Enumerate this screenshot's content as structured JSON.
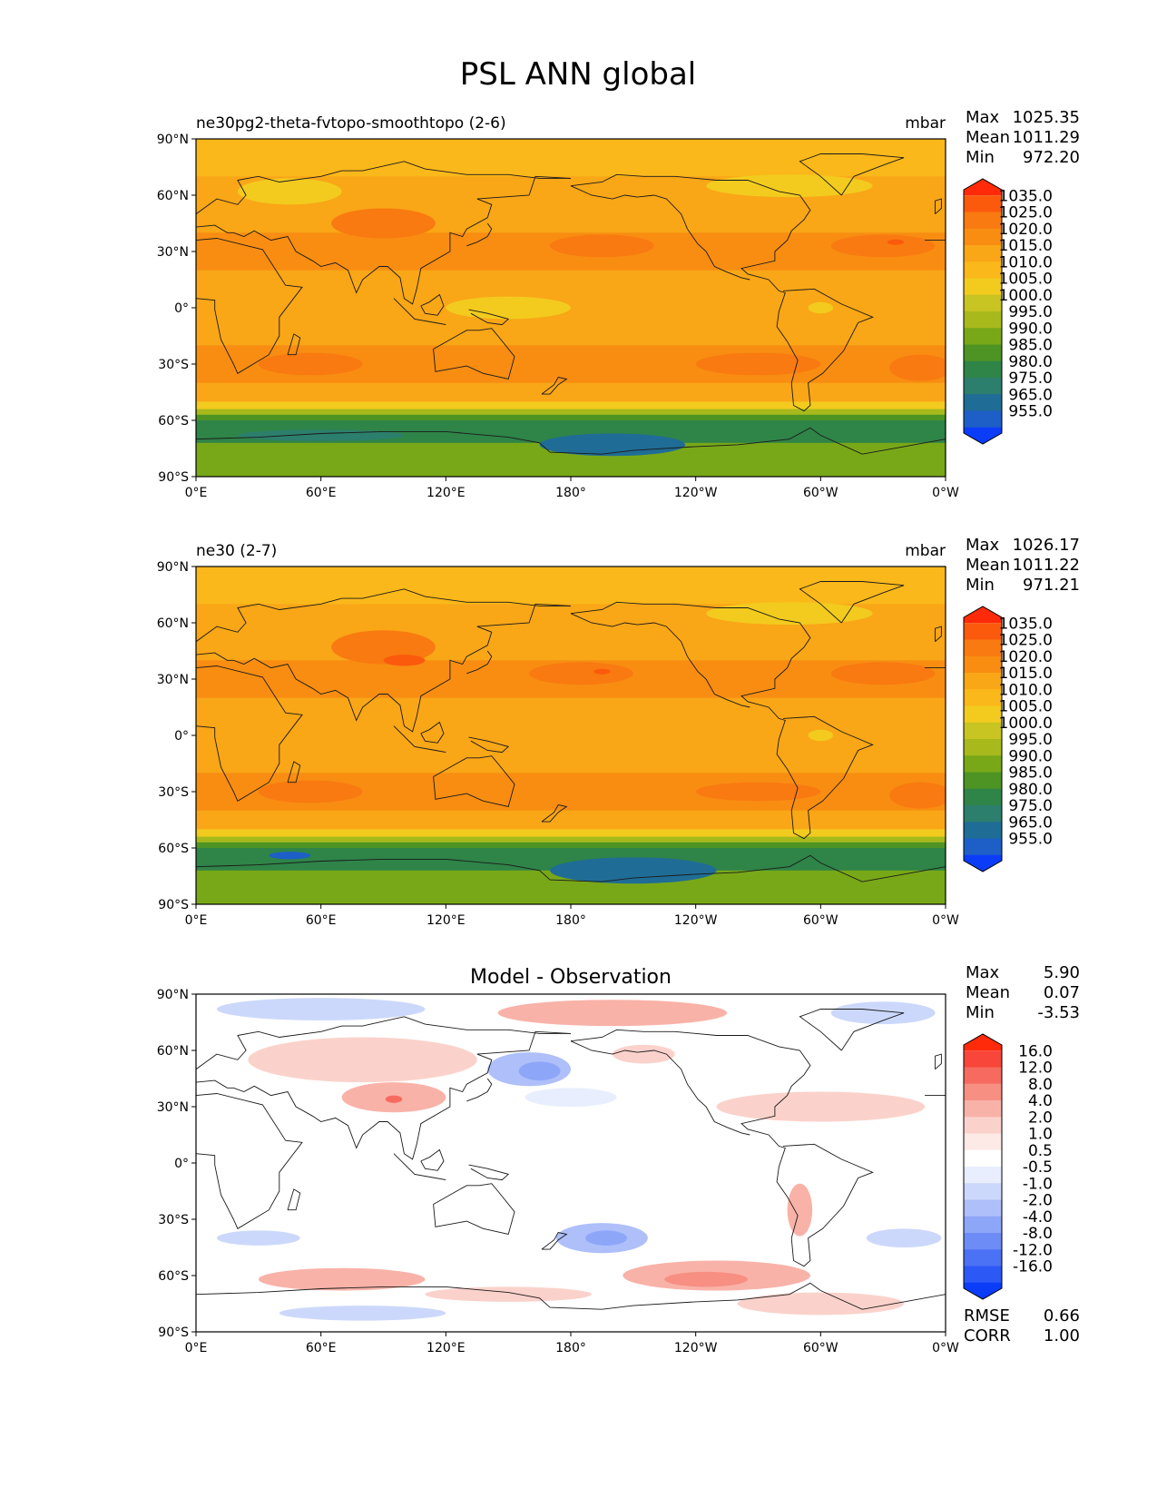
{
  "title": "PSL ANN global",
  "chart_data": [
    {
      "type": "heatmap",
      "title": "",
      "subtitle_left": "ne30pg2-theta-fvtopo-smoothtopo (2-6)",
      "units": "mbar",
      "stats": [
        {
          "label": "Max",
          "value": "1025.35"
        },
        {
          "label": "Mean",
          "value": "1011.29"
        },
        {
          "label": "Min",
          "value": "972.20"
        }
      ],
      "x_ticks": [
        "0°E",
        "60°E",
        "120°E",
        "180°",
        "120°W",
        "60°W",
        "0°W"
      ],
      "y_ticks": [
        "90°N",
        "60°N",
        "30°N",
        "0°",
        "30°S",
        "60°S",
        "90°S"
      ],
      "colorbar": {
        "levels": [
          "1035.0",
          "1025.0",
          "1020.0",
          "1015.0",
          "1010.0",
          "1005.0",
          "1000.0",
          "995.0",
          "990.0",
          "985.0",
          "980.0",
          "975.0",
          "965.0",
          "955.0"
        ],
        "colors": [
          "#ff2a0a",
          "#fb5a0d",
          "#f97a10",
          "#f88d12",
          "#f9a617",
          "#fbb81a",
          "#f2cb1e",
          "#c8c422",
          "#a8b91c",
          "#78a818",
          "#4e9424",
          "#2f8448",
          "#2c7f6c",
          "#1f6d96",
          "#1d5fc7",
          "#0b3cf8"
        ]
      },
      "field": "model"
    },
    {
      "type": "heatmap",
      "title": "",
      "subtitle_left": "ne30 (2-7)",
      "units": "mbar",
      "stats": [
        {
          "label": "Max",
          "value": "1026.17"
        },
        {
          "label": "Mean",
          "value": "1011.22"
        },
        {
          "label": "Min",
          "value": "971.21"
        }
      ],
      "x_ticks": [
        "0°E",
        "60°E",
        "120°E",
        "180°",
        "120°W",
        "60°W",
        "0°W"
      ],
      "y_ticks": [
        "90°N",
        "60°N",
        "30°N",
        "0°",
        "30°S",
        "60°S",
        "90°S"
      ],
      "colorbar": {
        "levels": [
          "1035.0",
          "1025.0",
          "1020.0",
          "1015.0",
          "1010.0",
          "1005.0",
          "1000.0",
          "995.0",
          "990.0",
          "985.0",
          "980.0",
          "975.0",
          "965.0",
          "955.0"
        ],
        "colors": [
          "#ff2a0a",
          "#fb5a0d",
          "#f97a10",
          "#f88d12",
          "#f9a617",
          "#fbb81a",
          "#f2cb1e",
          "#c8c422",
          "#a8b91c",
          "#78a818",
          "#4e9424",
          "#2f8448",
          "#2c7f6c",
          "#1f6d96",
          "#1d5fc7",
          "#0b3cf8"
        ]
      },
      "field": "obs"
    },
    {
      "type": "heatmap",
      "title": "Model - Observation",
      "subtitle_left": "",
      "units": "",
      "stats": [
        {
          "label": "Max",
          "value": "5.90"
        },
        {
          "label": "Mean",
          "value": "0.07"
        },
        {
          "label": "Min",
          "value": "-3.53"
        }
      ],
      "extra_stats": [
        {
          "label": "RMSE",
          "value": "0.66"
        },
        {
          "label": "CORR",
          "value": "1.00"
        }
      ],
      "x_ticks": [
        "0°E",
        "60°E",
        "120°E",
        "180°",
        "120°W",
        "60°W",
        "0°W"
      ],
      "y_ticks": [
        "90°N",
        "60°N",
        "30°N",
        "0°",
        "30°S",
        "60°S",
        "90°S"
      ],
      "colorbar": {
        "levels": [
          "16.0",
          "12.0",
          "8.0",
          "4.0",
          "2.0",
          "1.0",
          "0.5",
          "-0.5",
          "-1.0",
          "-2.0",
          "-4.0",
          "-8.0",
          "-12.0",
          "-16.0"
        ],
        "colors": [
          "#ff2a0a",
          "#f9463a",
          "#f76a5f",
          "#f78f83",
          "#f9b2a8",
          "#fbd2cb",
          "#fdeae6",
          "#ffffff",
          "#e8eefd",
          "#ccd8fb",
          "#aebffa",
          "#8ea6f8",
          "#6e8cf6",
          "#4b71f4",
          "#2c58f6",
          "#0b3cf8"
        ]
      },
      "field": "diff"
    }
  ]
}
